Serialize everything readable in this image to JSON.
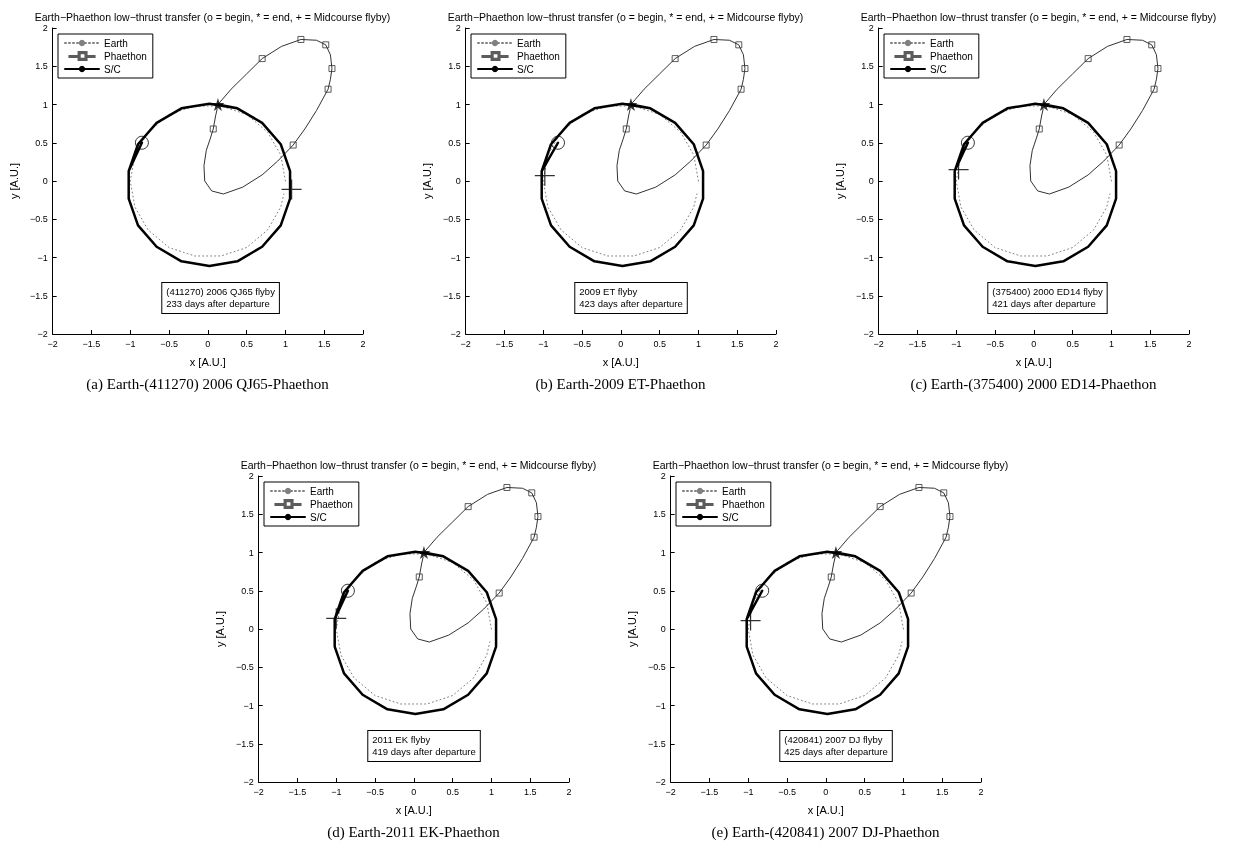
{
  "chart_data": [
    {
      "type": "line",
      "title": "Earth−Phaethon low−thrust transfer (o = begin, * = end, + = Midcourse flyby)",
      "xlabel": "x [A.U.]",
      "ylabel": "y [A.U.]",
      "xlim": [
        -2,
        2
      ],
      "ylim": [
        -2,
        2
      ],
      "xticks": [
        {
          "value": -2,
          "label": "−2"
        },
        {
          "value": -1.5,
          "label": "−1.5"
        },
        {
          "value": -1,
          "label": "−1"
        },
        {
          "value": -0.5,
          "label": "−0.5"
        },
        0,
        0.5,
        1,
        1.5,
        2
      ],
      "yticks": [
        {
          "value": -2,
          "label": "−2"
        },
        {
          "value": -1.5,
          "label": "−1.5"
        },
        {
          "value": -1,
          "label": "−1"
        },
        {
          "value": -0.5,
          "label": "−0.5"
        },
        0,
        0.5,
        1,
        1.5,
        2
      ],
      "legend": "top left",
      "annotations": [
        "(411270) 2006 QJ65 flyby\n233 days after departure",
        "(a) Earth-(411270) 2006 QJ65-Phaethon"
      ],
      "series": [
        {
          "name": "Earth",
          "type": "line",
          "color": "#808080",
          "line_style": "dotted",
          "marker": "none",
          "x": [
            1,
            0.94,
            0.77,
            0.5,
            0.17,
            -0.17,
            -0.5,
            -0.77,
            -0.94,
            -1,
            -0.94,
            -0.77,
            -0.5,
            -0.17,
            0.17,
            0.5,
            0.77,
            0.94,
            0.98
          ],
          "values": [
            0,
            0.34,
            0.64,
            0.87,
            0.98,
            0.98,
            0.87,
            0.64,
            0.34,
            0,
            -0.34,
            -0.64,
            -0.87,
            -0.98,
            -0.98,
            -0.87,
            -0.64,
            -0.34,
            -0.17
          ]
        },
        {
          "name": "Phaethon",
          "type": "scatter",
          "color": "#333333",
          "marker": "square",
          "x": [
            0.07,
            0.7,
            1.2,
            1.52,
            1.6,
            1.55,
            1.1
          ],
          "values": [
            0.68,
            1.6,
            1.85,
            1.78,
            1.47,
            1.2,
            0.47
          ]
        },
        {
          "type": "line",
          "color": "#333333",
          "line_style": "solid",
          "marker": "none",
          "x": [
            0.13,
            0.3,
            0.5,
            0.7,
            0.95,
            1.2,
            1.4,
            1.52,
            1.58,
            1.6,
            1.58,
            1.55,
            1.4,
            1.25,
            1.1,
            0.9,
            0.7,
            0.45,
            0.2,
            0.05,
            -0.04,
            -0.05,
            -0.02,
            0.03,
            0.07,
            0.1,
            0.12
          ],
          "values": [
            1,
            1.2,
            1.4,
            1.6,
            1.76,
            1.85,
            1.84,
            1.78,
            1.65,
            1.47,
            1.33,
            1.2,
            0.92,
            0.68,
            0.47,
            0.26,
            0.08,
            -0.08,
            -0.17,
            -0.13,
            0,
            0.2,
            0.4,
            0.55,
            0.68,
            0.85,
            0.94
          ]
        },
        {
          "name": "S/C",
          "type": "line",
          "color": "#000000",
          "line_style": "solid",
          "marker": "none",
          "x": [
            -0.85,
            -1.02,
            -1.02,
            -0.9,
            -0.66,
            -0.34,
            0.02,
            0.38,
            0.7,
            0.94,
            1.06,
            1.06,
            0.94,
            0.7,
            0.38,
            0.02,
            -0.34,
            -0.66,
            -0.9,
            -1.02,
            -1.02,
            -0.9,
            -0.66,
            -0.34,
            0.02,
            0.38,
            0.7,
            0.94,
            1.06,
            1.06,
            0.94,
            0.7,
            0.38,
            0.13
          ],
          "values": [
            0.5,
            0.13,
            -0.23,
            -0.58,
            -0.86,
            -1.05,
            -1.11,
            -1.05,
            -0.86,
            -0.58,
            -0.23,
            0.13,
            0.48,
            0.76,
            0.95,
            1.01,
            0.95,
            0.76,
            0.48,
            0.13,
            -0.23,
            -0.58,
            -0.86,
            -1.05,
            -1.11,
            -1.05,
            -0.86,
            -0.58,
            -0.23,
            0.13,
            0.48,
            0.76,
            0.95,
            1
          ]
        },
        {
          "type": "scatter",
          "color": "#000000",
          "marker": "circle",
          "x": [
            -0.85
          ],
          "values": [
            0.5
          ]
        },
        {
          "type": "scatter",
          "color": "#000000",
          "marker": "star",
          "x": [
            0.13
          ],
          "values": [
            1
          ]
        },
        {
          "type": "scatter",
          "color": "#000000",
          "marker": "cross",
          "x": [
            1.08
          ],
          "values": [
            -0.11
          ]
        }
      ]
    },
    {
      "type": "line",
      "title": "Earth−Phaethon low−thrust transfer (o = begin, * = end, + = Midcourse flyby)",
      "xlabel": "x [A.U.]",
      "ylabel": "y [A.U.]",
      "xlim": [
        -2,
        2
      ],
      "ylim": [
        -2,
        2
      ],
      "xticks": [
        {
          "value": -2,
          "label": "−2"
        },
        {
          "value": -1.5,
          "label": "−1.5"
        },
        {
          "value": -1,
          "label": "−1"
        },
        {
          "value": -0.5,
          "label": "−0.5"
        },
        0,
        0.5,
        1,
        1.5,
        2
      ],
      "yticks": [
        {
          "value": -2,
          "label": "−2"
        },
        {
          "value": -1.5,
          "label": "−1.5"
        },
        {
          "value": -1,
          "label": "−1"
        },
        {
          "value": -0.5,
          "label": "−0.5"
        },
        0,
        0.5,
        1,
        1.5,
        2
      ],
      "legend": "top left",
      "annotations": [
        "2009 ET flyby\n423 days after departure",
        "(b) Earth-2009 ET-Phaethon"
      ],
      "series": [
        {
          "name": "Earth",
          "type": "line",
          "color": "#808080",
          "line_style": "dotted",
          "marker": "none",
          "x": [
            1,
            0.94,
            0.77,
            0.5,
            0.17,
            -0.17,
            -0.5,
            -0.77,
            -0.94,
            -1,
            -0.94,
            -0.77,
            -0.5,
            -0.17,
            0.17,
            0.5,
            0.77,
            0.94,
            0.98
          ],
          "values": [
            0,
            0.34,
            0.64,
            0.87,
            0.98,
            0.98,
            0.87,
            0.64,
            0.34,
            0,
            -0.34,
            -0.64,
            -0.87,
            -0.98,
            -0.98,
            -0.87,
            -0.64,
            -0.34,
            -0.17
          ]
        },
        {
          "name": "Phaethon",
          "type": "scatter",
          "color": "#333333",
          "marker": "square",
          "x": [
            0.07,
            0.7,
            1.2,
            1.52,
            1.6,
            1.55,
            1.1
          ],
          "values": [
            0.68,
            1.6,
            1.85,
            1.78,
            1.47,
            1.2,
            0.47
          ]
        },
        {
          "type": "line",
          "color": "#333333",
          "line_style": "solid",
          "marker": "none",
          "x": [
            0.13,
            0.3,
            0.5,
            0.7,
            0.95,
            1.2,
            1.4,
            1.52,
            1.58,
            1.6,
            1.58,
            1.55,
            1.4,
            1.25,
            1.1,
            0.9,
            0.7,
            0.45,
            0.2,
            0.05,
            -0.04,
            -0.05,
            -0.02,
            0.03,
            0.07,
            0.1,
            0.12
          ],
          "values": [
            1,
            1.2,
            1.4,
            1.6,
            1.76,
            1.85,
            1.84,
            1.78,
            1.65,
            1.47,
            1.33,
            1.2,
            0.92,
            0.68,
            0.47,
            0.26,
            0.08,
            -0.08,
            -0.17,
            -0.13,
            0,
            0.2,
            0.4,
            0.55,
            0.68,
            0.85,
            0.94
          ]
        },
        {
          "name": "S/C",
          "type": "line",
          "color": "#000000",
          "line_style": "solid",
          "marker": "none",
          "x": [
            -0.81,
            -1.02,
            -1.02,
            -0.9,
            -0.66,
            -0.34,
            0.02,
            0.38,
            0.7,
            0.94,
            1.06,
            1.06,
            0.94,
            0.7,
            0.38,
            0.02,
            -0.34,
            -0.66,
            -0.9,
            -1.02,
            -1.02,
            -0.9,
            -0.66,
            -0.34,
            0.02,
            0.38,
            0.7,
            0.94,
            1.06,
            1.06,
            0.94,
            0.7,
            0.38,
            0.13
          ],
          "values": [
            0.5,
            0.13,
            -0.23,
            -0.58,
            -0.86,
            -1.05,
            -1.11,
            -1.05,
            -0.86,
            -0.58,
            -0.23,
            0.13,
            0.48,
            0.76,
            0.95,
            1.01,
            0.95,
            0.76,
            0.48,
            0.13,
            -0.23,
            -0.58,
            -0.86,
            -1.05,
            -1.11,
            -1.05,
            -0.86,
            -0.58,
            -0.23,
            0.13,
            0.48,
            0.76,
            0.95,
            1
          ]
        },
        {
          "type": "scatter",
          "color": "#000000",
          "marker": "circle",
          "x": [
            -0.81
          ],
          "values": [
            0.5
          ]
        },
        {
          "type": "scatter",
          "color": "#000000",
          "marker": "star",
          "x": [
            0.13
          ],
          "values": [
            1
          ]
        },
        {
          "type": "scatter",
          "color": "#000000",
          "marker": "cross",
          "x": [
            -0.98
          ],
          "values": [
            0.07
          ]
        }
      ]
    },
    {
      "type": "line",
      "title": "Earth−Phaethon low−thrust transfer (o = begin, * = end, + = Midcourse flyby)",
      "xlabel": "x [A.U.]",
      "ylabel": "y [A.U.]",
      "xlim": [
        -2,
        2
      ],
      "ylim": [
        -2,
        2
      ],
      "xticks": [
        {
          "value": -2,
          "label": "−2"
        },
        {
          "value": -1.5,
          "label": "−1.5"
        },
        {
          "value": -1,
          "label": "−1"
        },
        {
          "value": -0.5,
          "label": "−0.5"
        },
        0,
        0.5,
        1,
        1.5,
        2
      ],
      "yticks": [
        {
          "value": -2,
          "label": "−2"
        },
        {
          "value": -1.5,
          "label": "−1.5"
        },
        {
          "value": -1,
          "label": "−1"
        },
        {
          "value": -0.5,
          "label": "−0.5"
        },
        0,
        0.5,
        1,
        1.5,
        2
      ],
      "legend": "top left",
      "annotations": [
        "(375400) 2000 ED14 flyby\n421 days after departure",
        "(c) Earth-(375400) 2000 ED14-Phaethon"
      ],
      "series": [
        {
          "name": "Earth",
          "type": "line",
          "color": "#808080",
          "line_style": "dotted",
          "marker": "none",
          "x": [
            1,
            0.94,
            0.77,
            0.5,
            0.17,
            -0.17,
            -0.5,
            -0.77,
            -0.94,
            -1,
            -0.94,
            -0.77,
            -0.5,
            -0.17,
            0.17,
            0.5,
            0.77,
            0.94,
            0.98
          ],
          "values": [
            0,
            0.34,
            0.64,
            0.87,
            0.98,
            0.98,
            0.87,
            0.64,
            0.34,
            0,
            -0.34,
            -0.64,
            -0.87,
            -0.98,
            -0.98,
            -0.87,
            -0.64,
            -0.34,
            -0.17
          ]
        },
        {
          "name": "Phaethon",
          "type": "scatter",
          "color": "#333333",
          "marker": "square",
          "x": [
            0.07,
            0.7,
            1.2,
            1.52,
            1.6,
            1.55,
            1.1
          ],
          "values": [
            0.68,
            1.6,
            1.85,
            1.78,
            1.47,
            1.2,
            0.47
          ]
        },
        {
          "type": "line",
          "color": "#333333",
          "line_style": "solid",
          "marker": "none",
          "x": [
            0.13,
            0.3,
            0.5,
            0.7,
            0.95,
            1.2,
            1.4,
            1.52,
            1.58,
            1.6,
            1.58,
            1.55,
            1.4,
            1.25,
            1.1,
            0.9,
            0.7,
            0.45,
            0.2,
            0.05,
            -0.04,
            -0.05,
            -0.02,
            0.03,
            0.07,
            0.1,
            0.12
          ],
          "values": [
            1,
            1.2,
            1.4,
            1.6,
            1.76,
            1.85,
            1.84,
            1.78,
            1.65,
            1.47,
            1.33,
            1.2,
            0.92,
            0.68,
            0.47,
            0.26,
            0.08,
            -0.08,
            -0.17,
            -0.13,
            0,
            0.2,
            0.4,
            0.55,
            0.68,
            0.85,
            0.94
          ]
        },
        {
          "name": "S/C",
          "type": "line",
          "color": "#000000",
          "line_style": "solid",
          "marker": "none",
          "x": [
            -0.85,
            -1.02,
            -1.02,
            -0.9,
            -0.66,
            -0.34,
            0.02,
            0.38,
            0.7,
            0.94,
            1.06,
            1.06,
            0.94,
            0.7,
            0.38,
            0.02,
            -0.34,
            -0.66,
            -0.9,
            -1.02,
            -1.02,
            -0.9,
            -0.66,
            -0.34,
            0.02,
            0.38,
            0.7,
            0.94,
            1.06,
            1.06,
            0.94,
            0.7,
            0.38,
            0.13
          ],
          "values": [
            0.5,
            0.13,
            -0.23,
            -0.58,
            -0.86,
            -1.05,
            -1.11,
            -1.05,
            -0.86,
            -0.58,
            -0.23,
            0.13,
            0.48,
            0.76,
            0.95,
            1.01,
            0.95,
            0.76,
            0.48,
            0.13,
            -0.23,
            -0.58,
            -0.86,
            -1.05,
            -1.11,
            -1.05,
            -0.86,
            -0.58,
            -0.23,
            0.13,
            0.48,
            0.76,
            0.95,
            1
          ]
        },
        {
          "type": "scatter",
          "color": "#000000",
          "marker": "circle",
          "x": [
            -0.85
          ],
          "values": [
            0.5
          ]
        },
        {
          "type": "scatter",
          "color": "#000000",
          "marker": "star",
          "x": [
            0.13
          ],
          "values": [
            1
          ]
        },
        {
          "type": "scatter",
          "color": "#000000",
          "marker": "cross",
          "x": [
            -0.97
          ],
          "values": [
            0.15
          ]
        }
      ]
    },
    {
      "type": "line",
      "title": "Earth−Phaethon low−thrust transfer (o = begin, * = end, + = Midcourse flyby)",
      "xlabel": "x [A.U.]",
      "ylabel": "y [A.U.]",
      "xlim": [
        -2,
        2
      ],
      "ylim": [
        -2,
        2
      ],
      "xticks": [
        {
          "value": -2,
          "label": "−2"
        },
        {
          "value": -1.5,
          "label": "−1.5"
        },
        {
          "value": -1,
          "label": "−1"
        },
        {
          "value": -0.5,
          "label": "−0.5"
        },
        0,
        0.5,
        1,
        1.5,
        2
      ],
      "yticks": [
        {
          "value": -2,
          "label": "−2"
        },
        {
          "value": -1.5,
          "label": "−1.5"
        },
        {
          "value": -1,
          "label": "−1"
        },
        {
          "value": -0.5,
          "label": "−0.5"
        },
        0,
        0.5,
        1,
        1.5,
        2
      ],
      "legend": "top left",
      "annotations": [
        "2011 EK flyby\n419 days after departure",
        "(d) Earth-2011 EK-Phaethon"
      ],
      "series": [
        {
          "name": "Earth",
          "type": "line",
          "color": "#808080",
          "line_style": "dotted",
          "marker": "none",
          "x": [
            1,
            0.94,
            0.77,
            0.5,
            0.17,
            -0.17,
            -0.5,
            -0.77,
            -0.94,
            -1,
            -0.94,
            -0.77,
            -0.5,
            -0.17,
            0.17,
            0.5,
            0.77,
            0.94,
            0.98
          ],
          "values": [
            0,
            0.34,
            0.64,
            0.87,
            0.98,
            0.98,
            0.87,
            0.64,
            0.34,
            0,
            -0.34,
            -0.64,
            -0.87,
            -0.98,
            -0.98,
            -0.87,
            -0.64,
            -0.34,
            -0.17
          ]
        },
        {
          "name": "Phaethon",
          "type": "scatter",
          "color": "#333333",
          "marker": "square",
          "x": [
            0.07,
            0.7,
            1.2,
            1.52,
            1.6,
            1.55,
            1.1
          ],
          "values": [
            0.68,
            1.6,
            1.85,
            1.78,
            1.47,
            1.2,
            0.47
          ]
        },
        {
          "type": "line",
          "color": "#333333",
          "line_style": "solid",
          "marker": "none",
          "x": [
            0.13,
            0.3,
            0.5,
            0.7,
            0.95,
            1.2,
            1.4,
            1.52,
            1.58,
            1.6,
            1.58,
            1.55,
            1.4,
            1.25,
            1.1,
            0.9,
            0.7,
            0.45,
            0.2,
            0.05,
            -0.04,
            -0.05,
            -0.02,
            0.03,
            0.07,
            0.1,
            0.12
          ],
          "values": [
            1,
            1.2,
            1.4,
            1.6,
            1.76,
            1.85,
            1.84,
            1.78,
            1.65,
            1.47,
            1.33,
            1.2,
            0.92,
            0.68,
            0.47,
            0.26,
            0.08,
            -0.08,
            -0.17,
            -0.13,
            0,
            0.2,
            0.4,
            0.55,
            0.68,
            0.85,
            0.94
          ]
        },
        {
          "name": "S/C",
          "type": "line",
          "color": "#000000",
          "line_style": "solid",
          "marker": "none",
          "x": [
            -0.85,
            -1.02,
            -1.02,
            -0.9,
            -0.66,
            -0.34,
            0.02,
            0.38,
            0.7,
            0.94,
            1.06,
            1.06,
            0.94,
            0.7,
            0.38,
            0.02,
            -0.34,
            -0.66,
            -0.9,
            -1.02,
            -1.02,
            -0.9,
            -0.66,
            -0.34,
            0.02,
            0.38,
            0.7,
            0.94,
            1.06,
            1.06,
            0.94,
            0.7,
            0.38,
            0.13
          ],
          "values": [
            0.5,
            0.13,
            -0.23,
            -0.58,
            -0.86,
            -1.05,
            -1.11,
            -1.05,
            -0.86,
            -0.58,
            -0.23,
            0.13,
            0.48,
            0.76,
            0.95,
            1.01,
            0.95,
            0.76,
            0.48,
            0.13,
            -0.23,
            -0.58,
            -0.86,
            -1.05,
            -1.11,
            -1.05,
            -0.86,
            -0.58,
            -0.23,
            0.13,
            0.48,
            0.76,
            0.95,
            1
          ]
        },
        {
          "type": "scatter",
          "color": "#000000",
          "marker": "circle",
          "x": [
            -0.85
          ],
          "values": [
            0.5
          ]
        },
        {
          "type": "scatter",
          "color": "#000000",
          "marker": "star",
          "x": [
            0.13
          ],
          "values": [
            1
          ]
        },
        {
          "type": "scatter",
          "color": "#000000",
          "marker": "cross",
          "x": [
            -1.0
          ],
          "values": [
            0.14
          ]
        }
      ]
    },
    {
      "type": "line",
      "title": "Earth−Phaethon low−thrust transfer (o = begin, * = end, + = Midcourse flyby)",
      "xlabel": "x [A.U.]",
      "ylabel": "y [A.U.]",
      "xlim": [
        -2,
        2
      ],
      "ylim": [
        -2,
        2
      ],
      "xticks": [
        {
          "value": -2,
          "label": "−2"
        },
        {
          "value": -1.5,
          "label": "−1.5"
        },
        {
          "value": -1,
          "label": "−1"
        },
        {
          "value": -0.5,
          "label": "−0.5"
        },
        0,
        0.5,
        1,
        1.5,
        2
      ],
      "yticks": [
        {
          "value": -2,
          "label": "−2"
        },
        {
          "value": -1.5,
          "label": "−1.5"
        },
        {
          "value": -1,
          "label": "−1"
        },
        {
          "value": -0.5,
          "label": "−0.5"
        },
        0,
        0.5,
        1,
        1.5,
        2
      ],
      "legend": "top left",
      "annotations": [
        "(420841) 2007 DJ flyby\n425 days after departure",
        "(e) Earth-(420841) 2007 DJ-Phaethon"
      ],
      "series": [
        {
          "name": "Earth",
          "type": "line",
          "color": "#808080",
          "line_style": "dotted",
          "marker": "none",
          "x": [
            1,
            0.94,
            0.77,
            0.5,
            0.17,
            -0.17,
            -0.5,
            -0.77,
            -0.94,
            -1,
            -0.94,
            -0.77,
            -0.5,
            -0.17,
            0.17,
            0.5,
            0.77,
            0.94,
            0.98
          ],
          "values": [
            0,
            0.34,
            0.64,
            0.87,
            0.98,
            0.98,
            0.87,
            0.64,
            0.34,
            0,
            -0.34,
            -0.64,
            -0.87,
            -0.98,
            -0.98,
            -0.87,
            -0.64,
            -0.34,
            -0.17
          ]
        },
        {
          "name": "Phaethon",
          "type": "scatter",
          "color": "#333333",
          "marker": "square",
          "x": [
            0.07,
            0.7,
            1.2,
            1.52,
            1.6,
            1.55,
            1.1
          ],
          "values": [
            0.68,
            1.6,
            1.85,
            1.78,
            1.47,
            1.2,
            0.47
          ]
        },
        {
          "type": "line",
          "color": "#333333",
          "line_style": "solid",
          "marker": "none",
          "x": [
            0.13,
            0.3,
            0.5,
            0.7,
            0.95,
            1.2,
            1.4,
            1.52,
            1.58,
            1.6,
            1.58,
            1.55,
            1.4,
            1.25,
            1.1,
            0.9,
            0.7,
            0.45,
            0.2,
            0.05,
            -0.04,
            -0.05,
            -0.02,
            0.03,
            0.07,
            0.1,
            0.12
          ],
          "values": [
            1,
            1.2,
            1.4,
            1.6,
            1.76,
            1.85,
            1.84,
            1.78,
            1.65,
            1.47,
            1.33,
            1.2,
            0.92,
            0.68,
            0.47,
            0.26,
            0.08,
            -0.08,
            -0.17,
            -0.13,
            0,
            0.2,
            0.4,
            0.55,
            0.68,
            0.85,
            0.94
          ]
        },
        {
          "name": "S/C",
          "type": "line",
          "color": "#000000",
          "line_style": "solid",
          "marker": "none",
          "x": [
            -0.82,
            -1.02,
            -1.02,
            -0.9,
            -0.66,
            -0.34,
            0.02,
            0.38,
            0.7,
            0.94,
            1.06,
            1.06,
            0.94,
            0.7,
            0.38,
            0.02,
            -0.34,
            -0.66,
            -0.9,
            -1.02,
            -1.02,
            -0.9,
            -0.66,
            -0.34,
            0.02,
            0.38,
            0.7,
            0.94,
            1.06,
            1.06,
            0.94,
            0.7,
            0.38,
            0.13
          ],
          "values": [
            0.5,
            0.13,
            -0.23,
            -0.58,
            -0.86,
            -1.05,
            -1.11,
            -1.05,
            -0.86,
            -0.58,
            -0.23,
            0.13,
            0.48,
            0.76,
            0.95,
            1.01,
            0.95,
            0.76,
            0.48,
            0.13,
            -0.23,
            -0.58,
            -0.86,
            -1.05,
            -1.11,
            -1.05,
            -0.86,
            -0.58,
            -0.23,
            0.13,
            0.48,
            0.76,
            0.95,
            1
          ]
        },
        {
          "type": "scatter",
          "color": "#000000",
          "marker": "circle",
          "x": [
            -0.82
          ],
          "values": [
            0.5
          ]
        },
        {
          "type": "scatter",
          "color": "#000000",
          "marker": "star",
          "x": [
            0.13
          ],
          "values": [
            1
          ]
        },
        {
          "type": "scatter",
          "color": "#000000",
          "marker": "cross",
          "x": [
            -0.97
          ],
          "values": [
            0.11
          ]
        }
      ]
    }
  ]
}
